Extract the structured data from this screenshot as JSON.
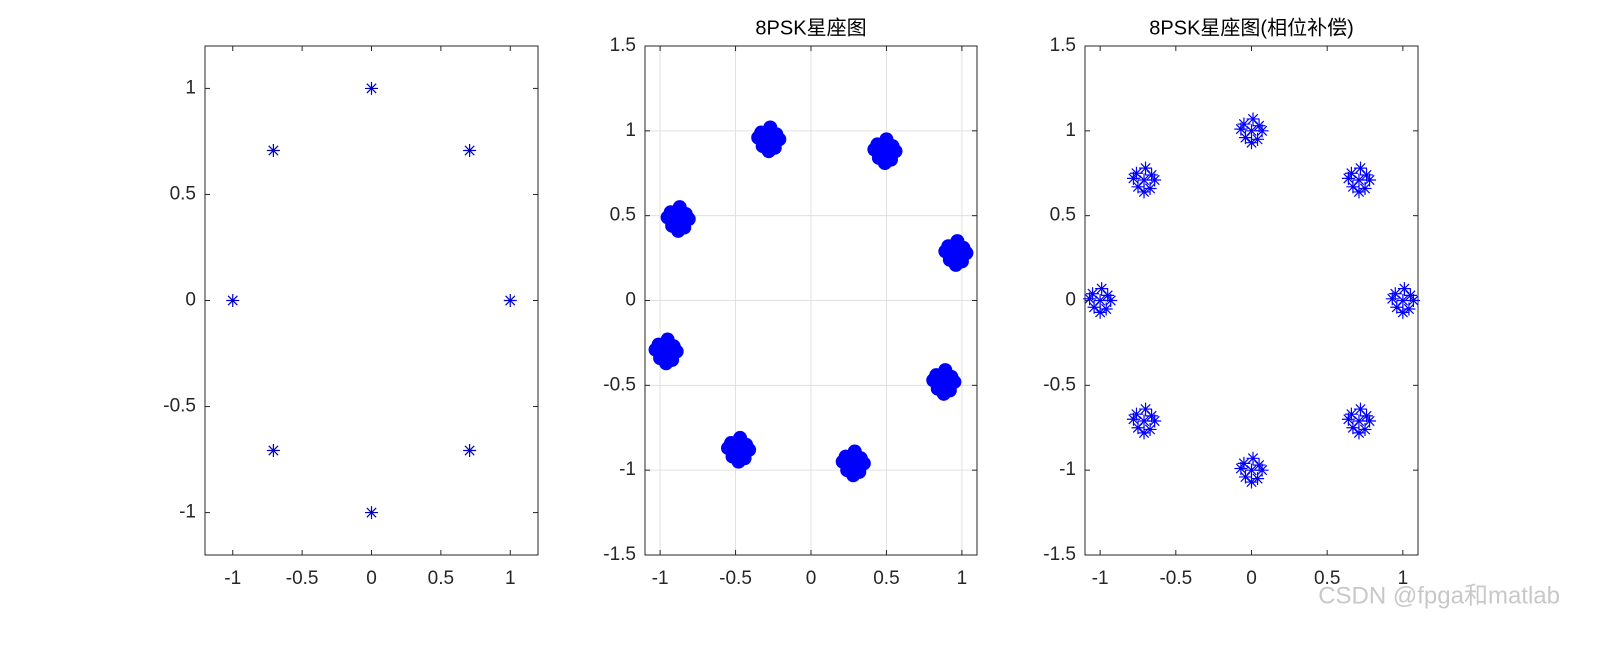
{
  "chart_data": [
    {
      "type": "scatter",
      "marker": "*",
      "color": "#0000cd",
      "grid": false,
      "x": [
        1,
        0.7071,
        0,
        -0.7071,
        -1,
        -0.7071,
        0,
        0.7071
      ],
      "values": [
        0,
        0.7071,
        1,
        0.7071,
        0,
        -0.7071,
        -1,
        -0.7071
      ],
      "xlim": [
        -1.2,
        1.2
      ],
      "ylim": [
        -1.2,
        1.2
      ],
      "xticks": [
        -1,
        -0.5,
        0,
        0.5,
        1
      ],
      "yticks": [
        -1,
        -0.5,
        0,
        0.5,
        1
      ]
    },
    {
      "type": "scatter",
      "marker": ".",
      "color": "#0000ff",
      "grid": true,
      "title": "8PSK星座图",
      "x": [
        -0.28,
        -0.23,
        -0.33,
        -0.24,
        -0.32,
        -0.21,
        -0.35,
        -0.27,
        -0.28,
        0.49,
        0.54,
        0.44,
        0.53,
        0.45,
        0.56,
        0.42,
        0.5,
        0.49,
        0.96,
        1.01,
        0.91,
        1.0,
        0.92,
        1.03,
        0.89,
        0.97,
        0.96,
        0.88,
        0.93,
        0.83,
        0.92,
        0.84,
        0.95,
        0.81,
        0.89,
        0.88,
        0.28,
        0.33,
        0.23,
        0.32,
        0.24,
        0.35,
        0.21,
        0.29,
        0.28,
        -0.48,
        -0.43,
        -0.53,
        -0.44,
        -0.52,
        -0.41,
        -0.55,
        -0.47,
        -0.48,
        -0.96,
        -0.91,
        -1.01,
        -0.92,
        -1.0,
        -0.89,
        -1.03,
        -0.95,
        -0.96,
        -0.88,
        -0.83,
        -0.93,
        -0.84,
        -0.92,
        -0.81,
        -0.95,
        -0.87,
        -0.88
      ],
      "values": [
        0.95,
        0.98,
        0.99,
        0.9,
        0.91,
        0.95,
        0.96,
        1.02,
        0.88,
        0.88,
        0.91,
        0.92,
        0.83,
        0.84,
        0.88,
        0.89,
        0.95,
        0.81,
        0.28,
        0.31,
        0.32,
        0.23,
        0.24,
        0.28,
        0.29,
        0.35,
        0.21,
        -0.48,
        -0.45,
        -0.44,
        -0.53,
        -0.52,
        -0.48,
        -0.47,
        -0.41,
        -0.55,
        -0.96,
        -0.93,
        -0.92,
        -1.01,
        -1.0,
        -0.96,
        -0.95,
        -0.89,
        -1.03,
        -0.88,
        -0.85,
        -0.84,
        -0.93,
        -0.92,
        -0.88,
        -0.87,
        -0.81,
        -0.95,
        -0.3,
        -0.27,
        -0.26,
        -0.35,
        -0.34,
        -0.3,
        -0.29,
        -0.23,
        -0.37,
        0.48,
        0.51,
        0.52,
        0.43,
        0.44,
        0.48,
        0.49,
        0.55,
        0.41
      ],
      "xlim": [
        -1.1,
        1.1
      ],
      "ylim": [
        -1.5,
        1.5
      ],
      "xticks": [
        -1,
        -0.5,
        0,
        0.5,
        1
      ],
      "yticks": [
        -1.5,
        -1,
        -0.5,
        0,
        0.5,
        1,
        1.5
      ]
    },
    {
      "type": "scatter",
      "marker": "*",
      "color": "#0000ff",
      "grid": false,
      "title": "8PSK星座图(相位补偿)",
      "x": [
        0,
        0.05,
        -0.05,
        0.04,
        -0.04,
        0.07,
        -0.07,
        0.01,
        0,
        0.71,
        0.76,
        0.66,
        0.75,
        0.67,
        0.78,
        0.64,
        0.72,
        0.71,
        1,
        1.05,
        0.95,
        1.04,
        0.96,
        1.07,
        0.93,
        1.01,
        1,
        0.71,
        0.76,
        0.66,
        0.75,
        0.67,
        0.78,
        0.64,
        0.72,
        0.71,
        0,
        0.05,
        -0.05,
        0.04,
        -0.04,
        0.07,
        -0.07,
        0.01,
        0,
        -0.71,
        -0.66,
        -0.76,
        -0.67,
        -0.75,
        -0.64,
        -0.78,
        -0.7,
        -0.71,
        -1,
        -0.95,
        -1.05,
        -0.96,
        -1.04,
        -0.93,
        -1.07,
        -0.99,
        -1,
        -0.71,
        -0.66,
        -0.76,
        -0.67,
        -0.75,
        -0.64,
        -0.78,
        -0.7,
        -0.71
      ],
      "values": [
        1,
        1.03,
        1.04,
        0.95,
        0.96,
        1,
        1.01,
        1.07,
        0.93,
        0.71,
        0.74,
        0.75,
        0.66,
        0.67,
        0.71,
        0.72,
        0.78,
        0.64,
        0,
        0.03,
        0.04,
        -0.05,
        -0.04,
        0,
        0.01,
        0.07,
        -0.07,
        -0.71,
        -0.68,
        -0.67,
        -0.76,
        -0.75,
        -0.71,
        -0.7,
        -0.64,
        -0.78,
        -1,
        -0.97,
        -0.96,
        -1.05,
        -1.04,
        -1,
        -0.99,
        -0.93,
        -1.07,
        -0.71,
        -0.68,
        -0.67,
        -0.76,
        -0.75,
        -0.71,
        -0.7,
        -0.64,
        -0.78,
        0,
        0.03,
        0.04,
        -0.05,
        -0.04,
        0,
        0.01,
        0.07,
        -0.07,
        0.71,
        0.74,
        0.75,
        0.66,
        0.67,
        0.71,
        0.72,
        0.78,
        0.64
      ],
      "xlim": [
        -1.1,
        1.1
      ],
      "ylim": [
        -1.5,
        1.5
      ],
      "xticks": [
        -1,
        -0.5,
        0,
        0.5,
        1
      ],
      "yticks": [
        -1.5,
        -1,
        -0.5,
        0,
        0.5,
        1,
        1.5
      ]
    }
  ],
  "watermark": "CSDN @fpga和matlab"
}
